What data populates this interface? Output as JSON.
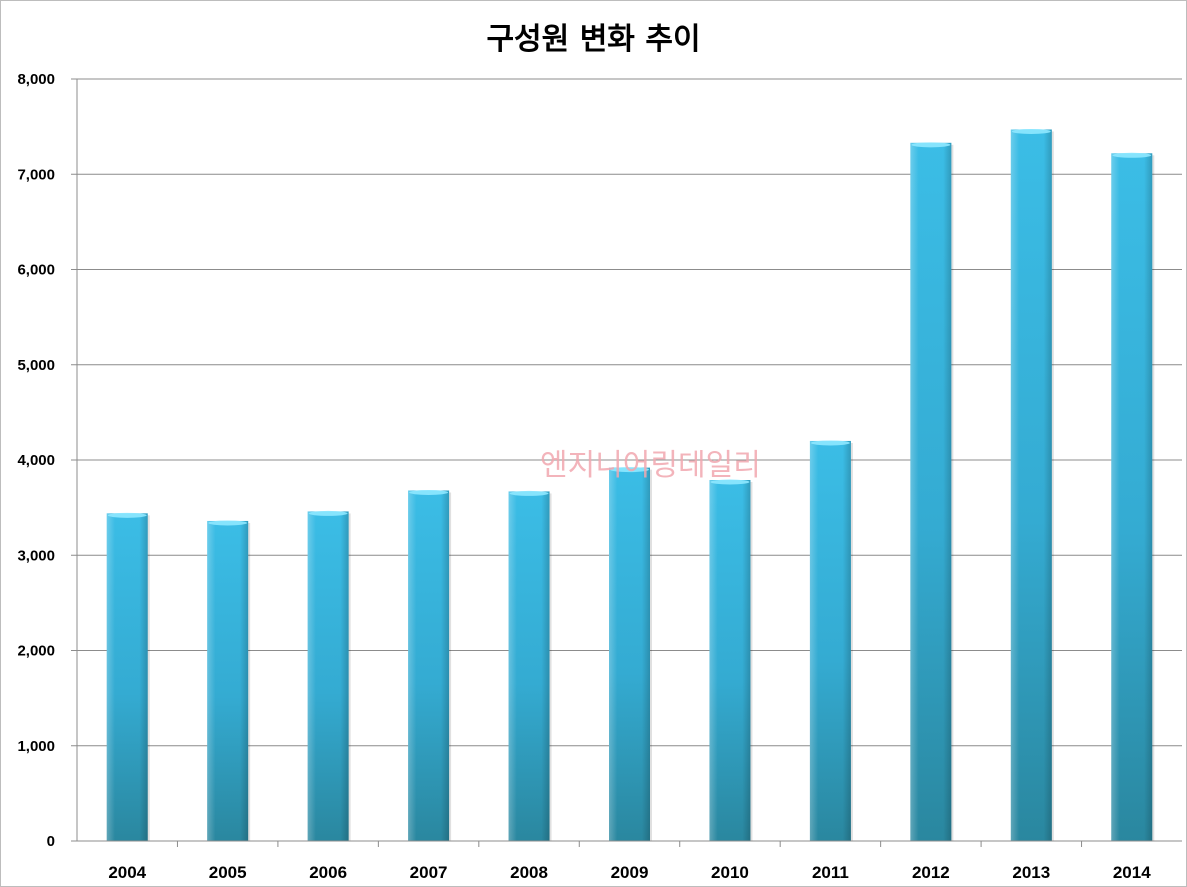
{
  "chart_data": {
    "type": "bar",
    "title": "구성원 변화 추이",
    "xlabel": "",
    "ylabel": "",
    "categories": [
      "2004",
      "2005",
      "2006",
      "2007",
      "2008",
      "2009",
      "2010",
      "2011",
      "2012",
      "2013",
      "2014"
    ],
    "values": [
      3440,
      3360,
      3460,
      3680,
      3670,
      3920,
      3790,
      4200,
      7330,
      7470,
      7220
    ],
    "ylim": [
      0,
      8000
    ],
    "yticks": [
      "0",
      "1,000",
      "2,000",
      "3,000",
      "4,000",
      "5,000",
      "6,000",
      "7,000",
      "8,000"
    ],
    "grid": true,
    "colors": {
      "bar": "#38b4dc",
      "bar_dark": "#2b8aa6",
      "grid": "#8c8c8c"
    }
  },
  "watermark": "엔지니어링데일리"
}
